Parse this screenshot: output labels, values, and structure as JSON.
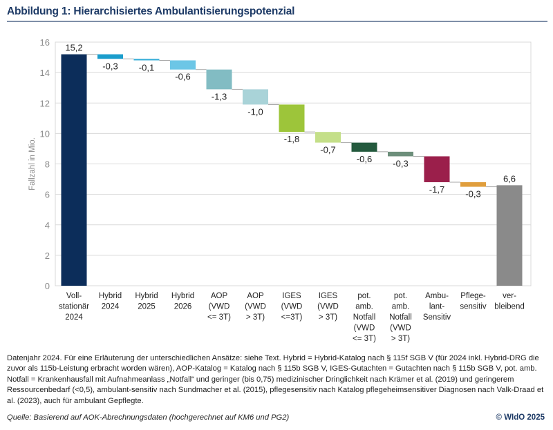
{
  "title": "Abbildung 1: Hierarchisiertes Ambulantisierungspotenzial",
  "chart_data": {
    "type": "waterfall",
    "ylabel": "Fallzahl in Mio.",
    "ylim": [
      0,
      16
    ],
    "yticks": [
      0,
      2,
      4,
      6,
      8,
      10,
      12,
      14,
      16
    ],
    "grid": true,
    "categories": [
      [
        "Voll-",
        "stationär",
        "2024"
      ],
      [
        "Hybrid",
        "2024"
      ],
      [
        "Hybrid",
        "2025"
      ],
      [
        "Hybrid",
        "2026"
      ],
      [
        "AOP",
        "(VWD",
        "<= 3T)"
      ],
      [
        "AOP",
        "(VWD",
        "> 3T)"
      ],
      [
        "IGES",
        "(VWD",
        "<=3T)"
      ],
      [
        "IGES",
        "(VWD",
        "> 3T)"
      ],
      [
        "pot.",
        "amb.",
        "Notfall",
        "(VWD",
        "<= 3T)"
      ],
      [
        "pot.",
        "amb.",
        "Notfall",
        "(VWD",
        "> 3T)"
      ],
      [
        "Ambu-",
        "lant-",
        "Sensitiv"
      ],
      [
        "Pflege-",
        "sensitiv"
      ],
      [
        "ver-",
        "bleibend"
      ]
    ],
    "values": [
      15.2,
      -0.3,
      -0.1,
      -0.6,
      -1.3,
      -1.0,
      -1.8,
      -0.7,
      -0.6,
      -0.3,
      -1.7,
      -0.3,
      6.6
    ],
    "labels": [
      "15,2",
      "-0,3",
      "-0,1",
      "-0,6",
      "-1,3",
      "-1,0",
      "-1,8",
      "-0,7",
      "-0,6",
      "-0,3",
      "-1,7",
      "-0,3",
      "6,6"
    ],
    "is_total": [
      true,
      false,
      false,
      false,
      false,
      false,
      false,
      false,
      false,
      false,
      false,
      false,
      true
    ],
    "colors": [
      "#0c2d5a",
      "#1a9dcc",
      "#38afd9",
      "#6cc6e6",
      "#82bcc3",
      "#a9d3d8",
      "#9dc53a",
      "#c4df89",
      "#245a3e",
      "#6d8f7b",
      "#9b1f4b",
      "#e09e3d",
      "#8a8a8a"
    ]
  },
  "note": "Datenjahr 2024. Für eine Erläuterung der unterschiedlichen Ansätze: siehe Text. Hybrid = Hybrid-Katalog nach § 115f SGB V (für 2024 inkl. Hybrid-DRG die zuvor als 115b-Leistung erbracht worden wären), AOP-Katalog = Katalog nach § 115b SGB V, IGES-Gutachten = Gutachten nach § 115b SGB V, pot. amb. Notfall = Krankenhausfall mit Aufnahmeanlass „Notfall“ und geringer (bis 0,75) medizinischer Dringlichkeit nach Krämer et al. (2019) und geringerem Ressourcenbedarf (<0,5), ambulant-sensitiv nach Sundmacher et al. (2015), pflegesensitiv nach Katalog pflegeheimsensitiver Diagnosen nach Valk-Draad et al. (2023), auch für ambulant Gepflegte.",
  "source": "Quelle: Basierend auf AOK-Abrechnungsdaten (hochgerechnet auf KM6 und PG2)",
  "copyright": "© WIdO 2025"
}
